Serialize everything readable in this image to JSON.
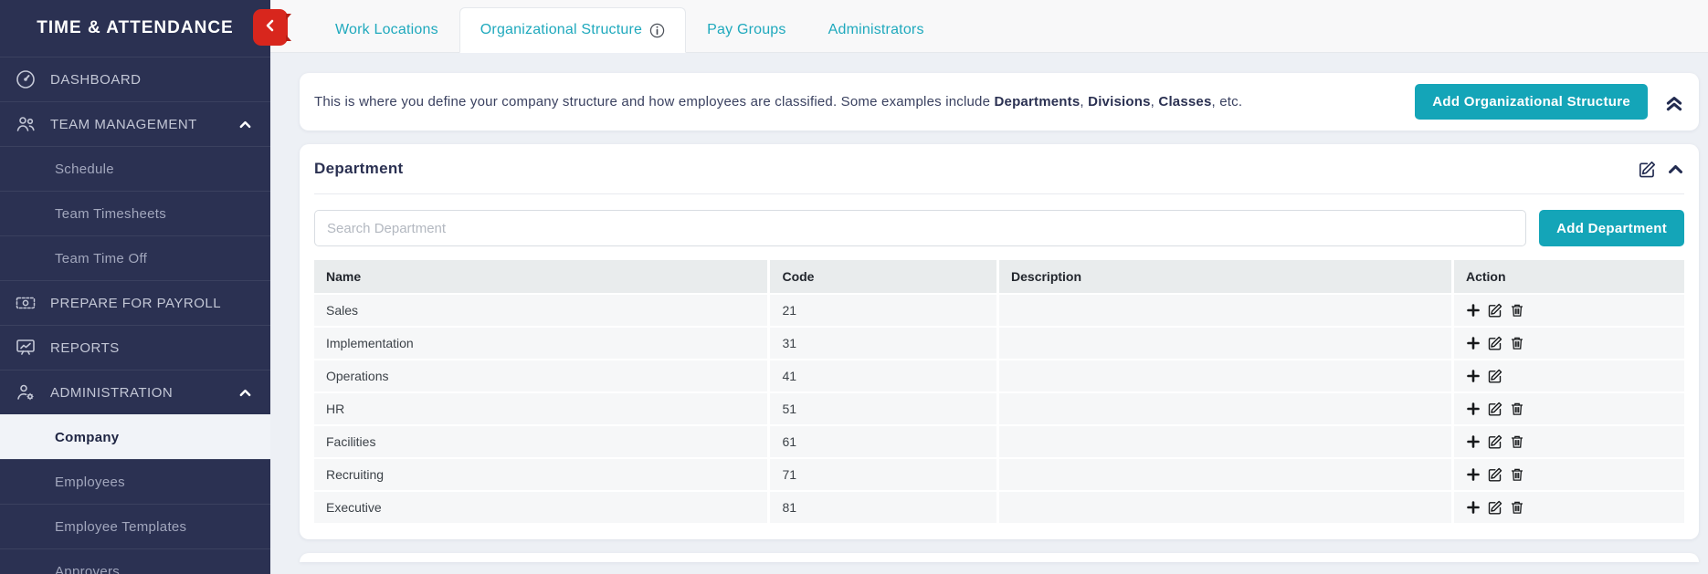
{
  "sidebar": {
    "title": "TIME & ATTENDANCE",
    "rows": [
      {
        "label": "DASHBOARD",
        "type": "section",
        "icon": "dashboard-icon"
      },
      {
        "label": "TEAM MANAGEMENT",
        "type": "section",
        "icon": "team-icon",
        "expanded": true
      },
      {
        "label": "Schedule",
        "type": "sub"
      },
      {
        "label": "Team Timesheets",
        "type": "sub"
      },
      {
        "label": "Team Time Off",
        "type": "sub"
      },
      {
        "label": "PREPARE FOR PAYROLL",
        "type": "section",
        "icon": "payroll-icon"
      },
      {
        "label": "REPORTS",
        "type": "section",
        "icon": "reports-icon"
      },
      {
        "label": "ADMINISTRATION",
        "type": "section",
        "icon": "administration-icon",
        "expanded": true
      },
      {
        "label": "Company",
        "type": "sub",
        "active": true
      },
      {
        "label": "Employees",
        "type": "sub"
      },
      {
        "label": "Employee Templates",
        "type": "sub"
      },
      {
        "label": "Approvers",
        "type": "sub"
      }
    ]
  },
  "tabs": [
    {
      "label": "Work Locations",
      "active": false
    },
    {
      "label": "Organizational Structure",
      "active": true,
      "has_info_icon": true
    },
    {
      "label": "Pay Groups",
      "active": false
    },
    {
      "label": "Administrators",
      "active": false
    }
  ],
  "banner": {
    "segments": [
      {
        "text": "This is where you define your company structure and how employees are classified. Some examples include ",
        "bold": false
      },
      {
        "text": "Departments",
        "bold": true
      },
      {
        "text": ", ",
        "bold": false
      },
      {
        "text": "Divisions",
        "bold": true
      },
      {
        "text": ", ",
        "bold": false
      },
      {
        "text": "Classes",
        "bold": true
      },
      {
        "text": ", etc.",
        "bold": false
      }
    ],
    "add_button_label": "Add Organizational Structure"
  },
  "department": {
    "title": "Department",
    "search_placeholder": "Search Department",
    "add_button_label": "Add Department",
    "table": {
      "columns": [
        "Name",
        "Code",
        "Description",
        "Action"
      ],
      "rows": [
        {
          "name": "Sales",
          "code": "21",
          "description": "",
          "actions": [
            "add",
            "edit",
            "delete"
          ]
        },
        {
          "name": "Implementation",
          "code": "31",
          "description": "",
          "actions": [
            "add",
            "edit",
            "delete"
          ]
        },
        {
          "name": "Operations",
          "code": "41",
          "description": "",
          "actions": [
            "add",
            "edit"
          ]
        },
        {
          "name": "HR",
          "code": "51",
          "description": "",
          "actions": [
            "add",
            "edit",
            "delete"
          ]
        },
        {
          "name": "Facilities",
          "code": "61",
          "description": "",
          "actions": [
            "add",
            "edit",
            "delete"
          ]
        },
        {
          "name": "Recruiting",
          "code": "71",
          "description": "",
          "actions": [
            "add",
            "edit",
            "delete"
          ]
        },
        {
          "name": "Executive",
          "code": "81",
          "description": "",
          "actions": [
            "add",
            "edit",
            "delete"
          ]
        }
      ]
    }
  },
  "colors": {
    "sidebar_bg": "#2b3152",
    "accent_teal": "#14a5b8",
    "tab_text_teal": "#1fa9bd",
    "toggle_red": "#d8261d",
    "active_item_bg": "#f1f3f8",
    "table_header_bg": "#e9eced",
    "table_row_bg": "#f6f7f8"
  }
}
